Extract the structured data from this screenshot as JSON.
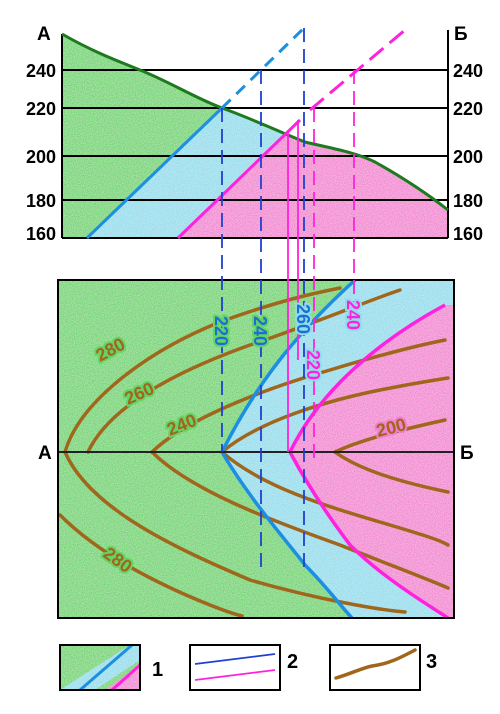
{
  "profile": {
    "end_left": "А",
    "end_right": "Б",
    "elevations": [
      "240",
      "220",
      "200",
      "180",
      "160"
    ]
  },
  "map": {
    "end_left": "А",
    "end_right": "Б",
    "contours": [
      "280",
      "260",
      "240",
      "200",
      "280"
    ],
    "blue_strata_labels": [
      "220",
      "240",
      "260",
      "240"
    ],
    "magenta_strata_labels": [
      "220"
    ]
  },
  "legend": {
    "items": [
      {
        "num": "1"
      },
      {
        "num": "2"
      },
      {
        "num": "3"
      }
    ]
  },
  "colors": {
    "green": "#66d366",
    "blue": "#8fdcec",
    "magenta": "#f27fd0",
    "blue_line": "#1c8fe0",
    "magenta_line": "#ff22dd",
    "dashed_blue": "#2040d0",
    "contour": "#a0661c",
    "topo_line": "#1e7a1e"
  }
}
